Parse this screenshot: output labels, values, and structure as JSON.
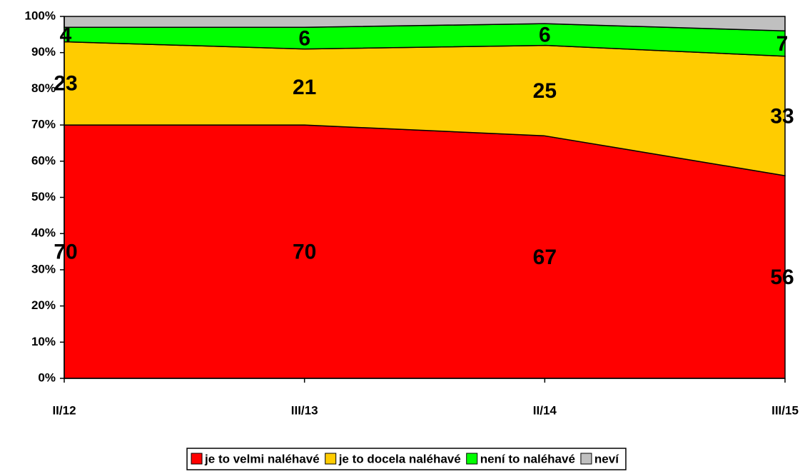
{
  "chart_data": {
    "type": "stacked_area",
    "categories": [
      "II/12",
      "III/13",
      "II/14",
      "III/15"
    ],
    "series": [
      {
        "name": "je to velmi naléhavé",
        "color": "#ff0000",
        "values": [
          70,
          70,
          67,
          56
        ]
      },
      {
        "name": "je to docela naléhavé",
        "color": "#ffcc00",
        "values": [
          23,
          21,
          25,
          33
        ]
      },
      {
        "name": "není to naléhavé",
        "color": "#00ff00",
        "values": [
          4,
          6,
          6,
          7
        ]
      },
      {
        "name": "neví",
        "color": "#c0c0c0",
        "values": [
          3,
          3,
          2,
          4
        ],
        "show_labels": false
      }
    ],
    "ylim": [
      0,
      100
    ],
    "yticks": [
      {
        "value": 0,
        "label": "0%"
      },
      {
        "value": 10,
        "label": "10%"
      },
      {
        "value": 20,
        "label": "20%"
      },
      {
        "value": 30,
        "label": "30%"
      },
      {
        "value": 40,
        "label": "40%"
      },
      {
        "value": 50,
        "label": "50%"
      },
      {
        "value": 60,
        "label": "60%"
      },
      {
        "value": 70,
        "label": "70%"
      },
      {
        "value": 80,
        "label": "80%"
      },
      {
        "value": 90,
        "label": "90%"
      },
      {
        "value": 100,
        "label": "100%"
      }
    ],
    "legend": "bottom"
  }
}
